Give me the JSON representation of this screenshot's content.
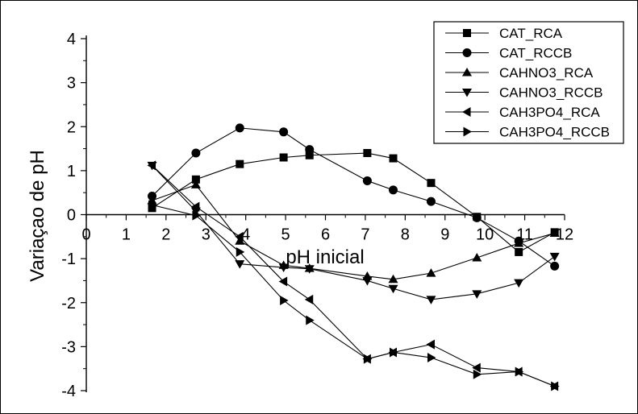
{
  "chart_data": {
    "type": "line",
    "title": "",
    "xlabel": "pH inicial",
    "ylabel": "Variaçao de pH",
    "xlim": [
      0,
      12
    ],
    "ylim": [
      -4,
      4
    ],
    "xticks": [
      0,
      1,
      2,
      3,
      4,
      5,
      6,
      7,
      8,
      9,
      10,
      11,
      12
    ],
    "yticks": [
      -4,
      -3,
      -2,
      -1,
      0,
      1,
      2,
      3,
      4
    ],
    "grid": false,
    "legend_position": "top-right",
    "series": [
      {
        "name": "CAT_RCA",
        "marker": "square",
        "x": [
          1.65,
          2.75,
          3.85,
          4.95,
          5.6,
          7.05,
          7.7,
          8.65,
          9.8,
          10.85,
          11.75
        ],
        "y": [
          0.15,
          0.8,
          1.15,
          1.3,
          1.35,
          1.4,
          1.28,
          0.72,
          -0.05,
          -0.85,
          -0.4
        ]
      },
      {
        "name": "CAT_RCCB",
        "marker": "circle",
        "x": [
          1.65,
          2.75,
          3.85,
          4.95,
          5.6,
          7.05,
          7.7,
          8.65,
          9.8,
          10.85,
          11.75
        ],
        "y": [
          0.42,
          1.4,
          1.97,
          1.88,
          1.48,
          0.77,
          0.56,
          0.3,
          -0.07,
          -0.6,
          -1.17
        ]
      },
      {
        "name": "CAHNO3_RCA",
        "marker": "triangle-up",
        "x": [
          1.65,
          2.75,
          3.85,
          4.95,
          5.6,
          7.05,
          7.7,
          8.65,
          9.8,
          10.85,
          11.75
        ],
        "y": [
          0.32,
          0.68,
          -0.6,
          -1.15,
          -1.22,
          -1.4,
          -1.47,
          -1.33,
          -0.98,
          -0.65,
          -0.42
        ]
      },
      {
        "name": "CAHNO3_RCCB",
        "marker": "triangle-down",
        "x": [
          1.65,
          2.75,
          3.85,
          4.95,
          5.6,
          7.05,
          7.7,
          8.65,
          9.8,
          10.85,
          11.75
        ],
        "y": [
          1.12,
          0.08,
          -1.12,
          -1.2,
          -1.23,
          -1.5,
          -1.68,
          -1.93,
          -1.8,
          -1.55,
          -0.95
        ]
      },
      {
        "name": "CAH3PO4_RCA",
        "marker": "triangle-left",
        "x": [
          1.65,
          2.75,
          3.85,
          4.95,
          5.6,
          7.05,
          7.7,
          8.65,
          9.8,
          10.85,
          11.75
        ],
        "y": [
          1.12,
          0.18,
          -0.5,
          -1.52,
          -1.93,
          -3.28,
          -3.13,
          -2.95,
          -3.48,
          -3.57,
          -3.9
        ]
      },
      {
        "name": "CAH3PO4_RCCB",
        "marker": "triangle-right",
        "x": [
          1.65,
          2.75,
          3.85,
          4.95,
          5.6,
          7.05,
          7.7,
          8.65,
          9.8,
          10.85,
          11.75
        ],
        "y": [
          0.22,
          -0.02,
          -0.85,
          -1.95,
          -2.4,
          -3.28,
          -3.13,
          -3.25,
          -3.63,
          -3.57,
          -3.9
        ]
      }
    ]
  }
}
